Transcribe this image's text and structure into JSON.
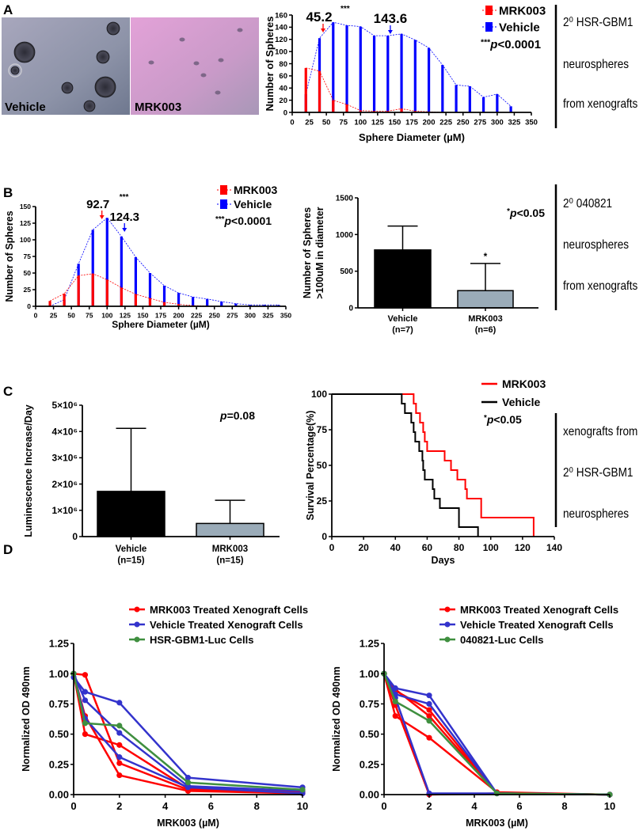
{
  "panels": {
    "a": "A",
    "b": "B",
    "c": "C",
    "d": "D"
  },
  "micrographs": [
    {
      "label": "Vehicle"
    },
    {
      "label": "MRK003"
    }
  ],
  "side_labels": {
    "a": [
      "2⁰ HSR-GBM1",
      "neurospheres",
      "from xenografts"
    ],
    "b": [
      "2⁰ 040821",
      "neurospheres",
      "from xenografts"
    ],
    "c": [
      "xenografts from",
      "2⁰ HSR-GBM1",
      "neurospheres"
    ]
  },
  "chart_data": [
    {
      "id": "A",
      "type": "bar",
      "style": "stick-with-dashed-outline",
      "title": "",
      "xlabel": "Sphere Diameter (µM)",
      "ylabel": "Number of Spheres",
      "xlim": [
        0,
        350
      ],
      "ylim": [
        0,
        160
      ],
      "xticks": [
        0,
        25,
        50,
        75,
        100,
        125,
        150,
        175,
        200,
        225,
        250,
        275,
        300,
        325,
        350
      ],
      "yticks": [
        0,
        20,
        40,
        60,
        80,
        100,
        120,
        140,
        160
      ],
      "x": [
        20,
        40,
        60,
        80,
        100,
        120,
        140,
        160,
        180,
        200,
        220,
        240,
        260,
        280,
        300,
        320
      ],
      "series": [
        {
          "name": "Vehicle",
          "color": "#0000ff",
          "values": [
            30,
            122,
            148,
            143,
            141,
            126,
            126,
            129,
            119,
            106,
            78,
            45,
            43,
            25,
            30,
            10
          ]
        },
        {
          "name": "MRK003",
          "color": "#ff0000",
          "values": [
            73,
            68,
            20,
            13,
            3,
            2,
            2,
            6,
            2,
            1,
            0,
            0,
            0,
            0,
            0,
            0
          ]
        }
      ],
      "legend": [
        "MRK003",
        "Vehicle"
      ],
      "legend_position": "top-right",
      "annotations": {
        "mrk003_mean": 45.2,
        "mrk003_mean_label": "45.2",
        "vehicle_mean": 143.6,
        "vehicle_mean_label": "143.6",
        "stars": "***"
      },
      "pvalue": {
        "stars": "***",
        "p": "p",
        "rest": "<0.0001"
      }
    },
    {
      "id": "B1",
      "type": "bar",
      "style": "stick-with-dashed-outline",
      "title": "",
      "xlabel": "Sphere Diameter (µM)",
      "ylabel": "Number of Spheres",
      "xlim": [
        0,
        350
      ],
      "ylim": [
        0,
        150
      ],
      "xticks": [
        0,
        25,
        50,
        75,
        100,
        125,
        150,
        175,
        200,
        225,
        250,
        275,
        300,
        325,
        350
      ],
      "yticks": [
        0,
        25,
        50,
        75,
        100,
        125,
        150
      ],
      "x": [
        20,
        40,
        60,
        80,
        100,
        120,
        140,
        160,
        180,
        200,
        220,
        240,
        260,
        280,
        300,
        320,
        340
      ],
      "series": [
        {
          "name": "Vehicle",
          "color": "#0000ff",
          "values": [
            0,
            10,
            64,
            115,
            133,
            105,
            74,
            50,
            31,
            20,
            14,
            11,
            7,
            4,
            2,
            2,
            2
          ]
        },
        {
          "name": "MRK003",
          "color": "#ff0000",
          "values": [
            8,
            19,
            46,
            49,
            40,
            28,
            18,
            12,
            6,
            3,
            1,
            0.5,
            0,
            0,
            0,
            0,
            0
          ]
        }
      ],
      "legend": [
        "MRK003",
        "Vehicle"
      ],
      "legend_position": "top-right",
      "annotations": {
        "mrk003_mean": 92.7,
        "mrk003_mean_label": "92.7",
        "vehicle_mean": 124.3,
        "vehicle_mean_label": "124.3",
        "stars": "***"
      },
      "pvalue": {
        "stars": "***",
        "p": "p",
        "rest": "<0.0001"
      }
    },
    {
      "id": "B2",
      "type": "bar",
      "title": "",
      "xlabel": "",
      "ylabel": [
        "Number of Spheres",
        ">100uM in diameter"
      ],
      "ylim": [
        0,
        1500
      ],
      "yticks": [
        0,
        500,
        1000,
        1500
      ],
      "ytick_labels": [
        "0",
        "500",
        "1000",
        "1500"
      ],
      "categories": [
        "Vehicle",
        "MRK003"
      ],
      "category_n": [
        "(n=7)",
        "(n=6)"
      ],
      "values": [
        790,
        235
      ],
      "errors": [
        325,
        370
      ],
      "colors": [
        "#000000",
        "#9aabb8"
      ],
      "significance": "*",
      "pvalue": {
        "stars": "*",
        "p": "p",
        "rest": "<0.05"
      }
    },
    {
      "id": "C1",
      "type": "bar",
      "title": "",
      "xlabel": "",
      "ylabel": "Luminescence Increase/Day",
      "ylim": [
        0,
        5000000
      ],
      "yticks": [
        0,
        1000000,
        2000000,
        3000000,
        4000000,
        5000000
      ],
      "ytick_labels": [
        "0",
        "1×10⁶",
        "2×10⁶",
        "3×10⁶",
        "4×10⁶",
        "5×10⁶"
      ],
      "categories": [
        "Vehicle",
        "MRK003"
      ],
      "category_n": [
        "(n=15)",
        "(n=15)"
      ],
      "values": [
        1720000,
        500000
      ],
      "errors": [
        2400000,
        880000
      ],
      "colors": [
        "#000000",
        "#9aabb8"
      ],
      "pvalue": {
        "stars": "",
        "p": "p",
        "rest": "=0.08"
      }
    },
    {
      "id": "C2",
      "type": "line",
      "style": "kaplan-meier-step",
      "title": "",
      "xlabel": "Days",
      "ylabel": "Survival Percentage(%)",
      "xlim": [
        0,
        140
      ],
      "ylim": [
        0,
        100
      ],
      "xticks": [
        0,
        20,
        40,
        60,
        80,
        100,
        120,
        140
      ],
      "yticks": [
        0,
        25,
        50,
        75,
        100
      ],
      "series": [
        {
          "name": "MRK003",
          "color": "#ff0000",
          "days": [
            0,
            51.5,
            53,
            55.5,
            57.5,
            58.5,
            60,
            71,
            75,
            79,
            84,
            85,
            94,
            127
          ],
          "survival": [
            100,
            93.3,
            86.7,
            80,
            73.3,
            66.7,
            60,
            53.3,
            46.7,
            40,
            33.3,
            26.7,
            13.3,
            0
          ]
        },
        {
          "name": "Vehicle",
          "color": "#000000",
          "days": [
            0,
            44,
            46,
            50,
            51.5,
            52.5,
            55,
            57,
            57.5,
            58.5,
            63.5,
            64.5,
            68,
            80,
            92
          ],
          "survival": [
            100,
            93.3,
            86.7,
            80,
            73.3,
            66.7,
            60,
            53.3,
            46.7,
            40,
            33.3,
            26.7,
            20,
            6.7,
            0
          ]
        }
      ],
      "legend": [
        "MRK003",
        "Vehicle"
      ],
      "legend_position": "top-right",
      "pvalue": {
        "stars": "*",
        "p": "p",
        "rest": "<0.05"
      }
    },
    {
      "id": "D1",
      "type": "line",
      "title": "",
      "xlabel": "MRK003 (µM)",
      "ylabel": "Normalized OD 490nm",
      "xlim": [
        0,
        10
      ],
      "ylim": [
        0,
        1.25
      ],
      "xticks": [
        0,
        2,
        4,
        6,
        8,
        10
      ],
      "yticks": [
        0,
        0.25,
        0.5,
        0.75,
        1.0,
        1.25
      ],
      "ytick_labels": [
        "0.00",
        "0.25",
        "0.50",
        "0.75",
        "1.00",
        "1.25"
      ],
      "x": [
        0,
        0.5,
        2,
        5,
        10
      ],
      "series": [
        {
          "name": "MRK003 Treated Xenograft Cells",
          "color": "#ff0000",
          "replicates": [
            [
              1.0,
              0.99,
              0.26,
              0.04,
              0.02
            ],
            [
              1.0,
              0.5,
              0.41,
              0.05,
              0.02
            ],
            [
              1.0,
              0.65,
              0.16,
              0.03,
              0.01
            ]
          ]
        },
        {
          "name": "Vehicle Treated Xenograft Cells",
          "color": "#3333cc",
          "replicates": [
            [
              0.97,
              0.85,
              0.76,
              0.14,
              0.06
            ],
            [
              1.0,
              0.78,
              0.51,
              0.07,
              0.03
            ],
            [
              1.0,
              0.63,
              0.31,
              0.06,
              0.01
            ]
          ]
        },
        {
          "name": "HSR-GBM1-Luc Cells",
          "color": "#3f8f3f",
          "replicates": [
            [
              1.0,
              0.59,
              0.57,
              0.1,
              0.04
            ]
          ]
        }
      ],
      "legend_position": "top-right"
    },
    {
      "id": "D2",
      "type": "line",
      "title": "",
      "xlabel": "MRK003 (µM)",
      "ylabel": "Normalized OD 490nm",
      "xlim": [
        0,
        10
      ],
      "ylim": [
        0,
        1.25
      ],
      "xticks": [
        0,
        2,
        4,
        6,
        8,
        10
      ],
      "yticks": [
        0,
        0.25,
        0.5,
        0.75,
        1.0,
        1.25
      ],
      "ytick_labels": [
        "0.00",
        "0.25",
        "0.50",
        "0.75",
        "1.00",
        "1.25"
      ],
      "x": [
        0,
        0.5,
        2,
        5,
        10
      ],
      "series": [
        {
          "name": "MRK003 Treated Xenograft Cells",
          "color": "#ff0000",
          "replicates": [
            [
              1.0,
              0.65,
              0.47,
              0.02,
              0
            ],
            [
              1.0,
              0.86,
              0.7,
              0.01,
              0
            ],
            [
              1.0,
              0.74,
              0.0,
              0.01,
              0
            ],
            [
              1.0,
              0.87,
              0.65,
              0.01,
              0
            ]
          ]
        },
        {
          "name": "Vehicle Treated Xenograft Cells",
          "color": "#3333cc",
          "replicates": [
            [
              1.0,
              0.88,
              0.82,
              0.01,
              0
            ],
            [
              1.0,
              0.83,
              0.75,
              0.01,
              0
            ],
            [
              1.0,
              0.8,
              0.01,
              0.01,
              0
            ]
          ]
        },
        {
          "name": "040821-Luc Cells",
          "color": "#3f8f3f",
          "replicates": [
            [
              1.0,
              0.77,
              0.61,
              0.01,
              0
            ]
          ]
        }
      ],
      "legend_position": "top-right"
    }
  ]
}
